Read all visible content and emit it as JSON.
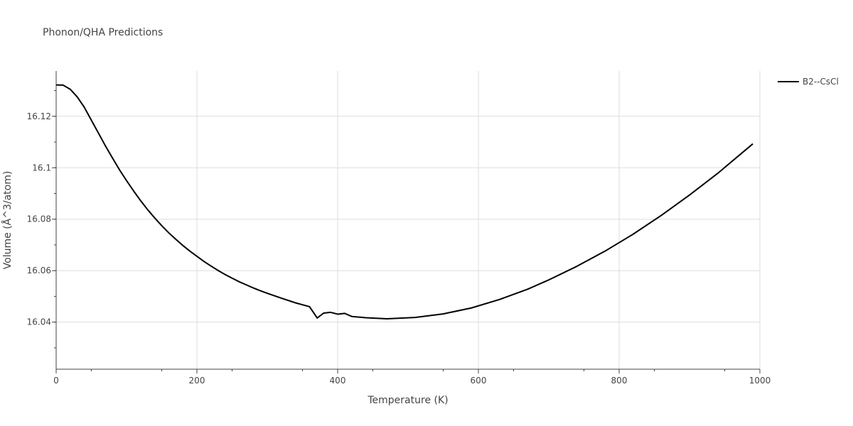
{
  "chart_data": {
    "type": "line",
    "title": "Phonon/QHA Predictions",
    "xlabel": "Temperature (K)",
    "ylabel": "Volume (Å^3/atom)",
    "xlim": [
      0,
      1000
    ],
    "ylim": [
      16.0217,
      16.1376
    ],
    "grid": true,
    "legend_position": "top-right",
    "x_ticks": [
      0,
      200,
      400,
      600,
      800,
      1000
    ],
    "x_tick_labels": [
      "0",
      "200",
      "400",
      "600",
      "800",
      "1000"
    ],
    "y_ticks": [
      16.04,
      16.06,
      16.08,
      16.1,
      16.12
    ],
    "y_tick_labels": [
      "16.04",
      "16.06",
      "16.08",
      "16.1",
      "16.12"
    ],
    "series": [
      {
        "name": "B2--CsCl",
        "color": "#000000",
        "x": [
          0,
          10,
          20,
          30,
          40,
          50,
          60,
          70,
          80,
          90,
          100,
          110,
          120,
          130,
          140,
          150,
          160,
          170,
          180,
          190,
          200,
          210,
          220,
          230,
          240,
          250,
          260,
          270,
          280,
          290,
          300,
          320,
          340,
          360,
          371,
          380,
          390,
          400,
          410,
          420,
          440,
          470,
          510,
          550,
          590,
          630,
          670,
          700,
          740,
          780,
          820,
          860,
          900,
          940,
          990
        ],
        "y": [
          16.1322,
          16.1321,
          16.1305,
          16.1275,
          16.1235,
          16.1185,
          16.1135,
          16.1085,
          16.1038,
          16.0992,
          16.095,
          16.091,
          16.0872,
          16.0837,
          16.0805,
          16.0775,
          16.0747,
          16.0722,
          16.0698,
          16.0676,
          16.0656,
          16.0636,
          16.0618,
          16.0601,
          16.0585,
          16.0571,
          16.0557,
          16.0545,
          16.0533,
          16.0522,
          16.0512,
          16.0493,
          16.0475,
          16.046,
          16.0416,
          16.0435,
          16.0438,
          16.0431,
          16.0434,
          16.0422,
          16.0417,
          16.0413,
          16.0418,
          16.0432,
          16.0455,
          16.0488,
          16.0528,
          16.0564,
          16.0617,
          16.0676,
          16.0742,
          16.0815,
          16.0894,
          16.0978,
          16.1093
        ]
      }
    ]
  }
}
